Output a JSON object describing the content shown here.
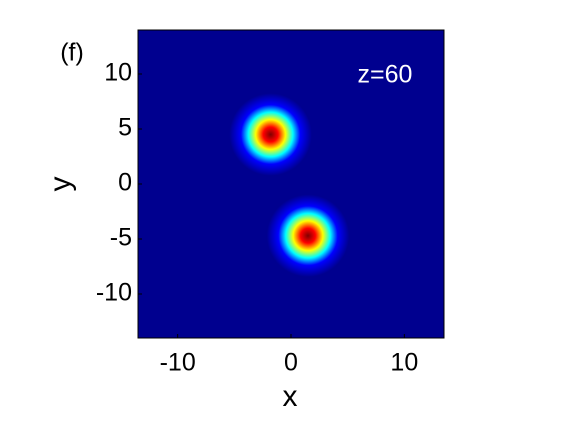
{
  "chart_data": {
    "type": "heatmap",
    "panel_label": "(f)",
    "annotation": "z=60",
    "xlabel": "x",
    "ylabel": "y",
    "xlim": [
      -13.5,
      13.5
    ],
    "ylim": [
      -14,
      14
    ],
    "xticks": [
      -10,
      0,
      10
    ],
    "yticks": [
      -10,
      -5,
      0,
      5,
      10
    ],
    "background": "#00008f",
    "colormap": [
      "#800000",
      "#ff0000",
      "#ffff00",
      "#00ffff",
      "#0000ff"
    ],
    "spots": [
      {
        "x": -1.8,
        "y": 4.5,
        "sigma": 1.4
      },
      {
        "x": 1.5,
        "y": -4.7,
        "sigma": 1.4
      }
    ]
  }
}
